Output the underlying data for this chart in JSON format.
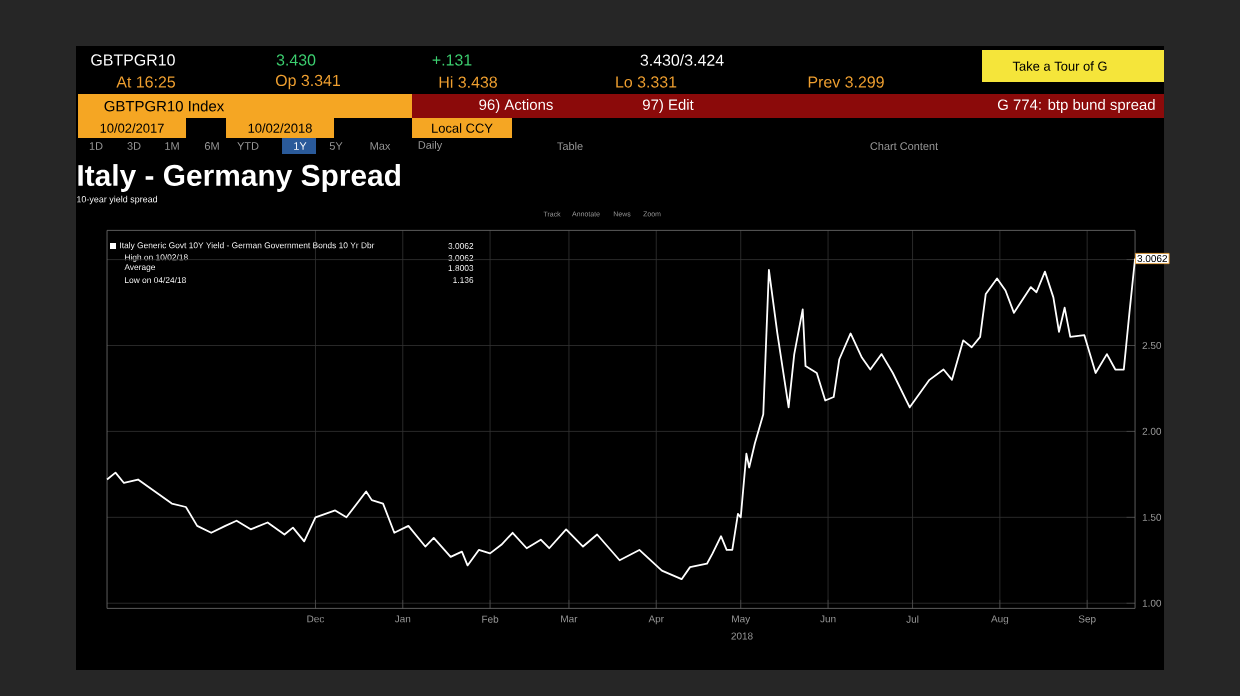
{
  "chart_data": {
    "type": "line",
    "title": "Italy - Germany Spread",
    "subtitle": "10-year yield spread",
    "xlim": [
      "2017-10-02",
      "2018-10-02"
    ],
    "xticks": [
      {
        "value": "2017-12-15",
        "label": "Dec"
      },
      {
        "value": "2018-01-15",
        "label": "Jan"
      },
      {
        "value": "2018-02-15",
        "label": "Feb"
      },
      {
        "value": "2018-03-15",
        "label": "Mar"
      },
      {
        "value": "2018-04-15",
        "label": "Apr"
      },
      {
        "value": "2018-05-15",
        "label": "May"
      },
      {
        "value": "2018-06-15",
        "label": "Jun"
      },
      {
        "value": "2018-07-15",
        "label": "Jul"
      },
      {
        "value": "2018-08-15",
        "label": "Aug"
      },
      {
        "value": "2018-09-15",
        "label": "Sep"
      }
    ],
    "ylim": [
      0.97,
      3.17
    ],
    "yticks": [
      {
        "value": 1,
        "label": "1.00"
      },
      {
        "value": 1.5,
        "label": "1.50"
      },
      {
        "value": 2,
        "label": "2.00"
      },
      {
        "value": 2.5,
        "label": "2.50"
      },
      {
        "value": 3,
        "label": null
      }
    ],
    "grid": true,
    "legend": "top left",
    "marker": "none",
    "line_style": "solid",
    "series": [
      {
        "name": "Italy Generic Govt 10Y Yield - German Government Bonds 10 Yr Dbr",
        "color": "#ffffff",
        "x": [
          "2017-10-02",
          "2017-10-05",
          "2017-10-08",
          "2017-10-13",
          "2017-10-19",
          "2017-10-25",
          "2017-10-30",
          "2017-11-03",
          "2017-11-08",
          "2017-11-13",
          "2017-11-17",
          "2017-11-22",
          "2017-11-28",
          "2017-12-04",
          "2017-12-07",
          "2017-12-11",
          "2017-12-15",
          "2017-12-22",
          "2017-12-26",
          "2018-01-02",
          "2018-01-04",
          "2018-01-08",
          "2018-01-12",
          "2018-01-17",
          "2018-01-23",
          "2018-01-26",
          "2018-02-01",
          "2018-02-05",
          "2018-02-07",
          "2018-02-11",
          "2018-02-15",
          "2018-02-19",
          "2018-02-23",
          "2018-02-28",
          "2018-03-05",
          "2018-03-08",
          "2018-03-14",
          "2018-03-20",
          "2018-03-25",
          "2018-04-02",
          "2018-04-09",
          "2018-04-17",
          "2018-04-24",
          "2018-04-27",
          "2018-05-03",
          "2018-05-05",
          "2018-05-08",
          "2018-05-10",
          "2018-05-12",
          "2018-05-14",
          "2018-05-15",
          "2018-05-17",
          "2018-05-18",
          "2018-05-20",
          "2018-05-23",
          "2018-05-25",
          "2018-05-28",
          "2018-06-01",
          "2018-06-03",
          "2018-06-06",
          "2018-06-07",
          "2018-06-11",
          "2018-06-14",
          "2018-06-17",
          "2018-06-19",
          "2018-06-23",
          "2018-06-27",
          "2018-06-30",
          "2018-07-04",
          "2018-07-08",
          "2018-07-14",
          "2018-07-21",
          "2018-07-26",
          "2018-07-29",
          "2018-08-02",
          "2018-08-05",
          "2018-08-08",
          "2018-08-10",
          "2018-08-14",
          "2018-08-17",
          "2018-08-20",
          "2018-08-26",
          "2018-08-28",
          "2018-08-31",
          "2018-09-03",
          "2018-09-05",
          "2018-09-07",
          "2018-09-09",
          "2018-09-14",
          "2018-09-18",
          "2018-09-22",
          "2018-09-25",
          "2018-09-28",
          "2018-09-30",
          "2018-10-02"
        ],
        "values": [
          1.72,
          1.76,
          1.7,
          1.72,
          1.65,
          1.58,
          1.56,
          1.45,
          1.41,
          1.45,
          1.48,
          1.43,
          1.47,
          1.4,
          1.44,
          1.36,
          1.5,
          1.54,
          1.5,
          1.65,
          1.6,
          1.58,
          1.41,
          1.45,
          1.33,
          1.38,
          1.27,
          1.3,
          1.22,
          1.31,
          1.29,
          1.34,
          1.41,
          1.32,
          1.37,
          1.32,
          1.43,
          1.33,
          1.4,
          1.25,
          1.31,
          1.19,
          1.14,
          1.21,
          1.23,
          1.29,
          1.39,
          1.31,
          1.31,
          1.52,
          1.5,
          1.87,
          1.79,
          1.93,
          2.1,
          2.94,
          2.57,
          2.14,
          2.45,
          2.71,
          2.38,
          2.34,
          2.18,
          2.2,
          2.42,
          2.57,
          2.43,
          2.36,
          2.45,
          2.34,
          2.14,
          2.3,
          2.36,
          2.3,
          2.53,
          2.49,
          2.55,
          2.8,
          2.89,
          2.82,
          2.69,
          2.84,
          2.81,
          2.93,
          2.78,
          2.58,
          2.72,
          2.55,
          2.56,
          2.34,
          2.45,
          2.36,
          2.36,
          2.69,
          3.0062
        ]
      }
    ],
    "annotations": [
      "GBTPGR10",
      "3.430",
      "+.131",
      "3.430/3.424",
      "Take a Tour of G",
      "At 16:25",
      "Op 3.341",
      "Hi 3.438",
      "Lo 3.331",
      "Prev 3.299",
      "GBTPGR10 Index",
      "96) Actions",
      "97) Edit",
      "G 774: btp bund spread",
      "10/02/2017",
      "10/02/2018",
      "Local CCY",
      "1D",
      "3D",
      "1M",
      "6M",
      "YTD",
      "1Y",
      "5Y",
      "Max",
      "Daily",
      "Table",
      "Chart Content",
      "Track",
      "Annotate",
      "News",
      "Zoom",
      "3.0062",
      "High on 10/02/18",
      "3.0062",
      "Average",
      "1.8003",
      "Low on 04/24/18",
      "1.136",
      "2018",
      {
        "text": "3.0062",
        "x": "2018-10-02",
        "y": 3.0062
      }
    ]
  }
}
